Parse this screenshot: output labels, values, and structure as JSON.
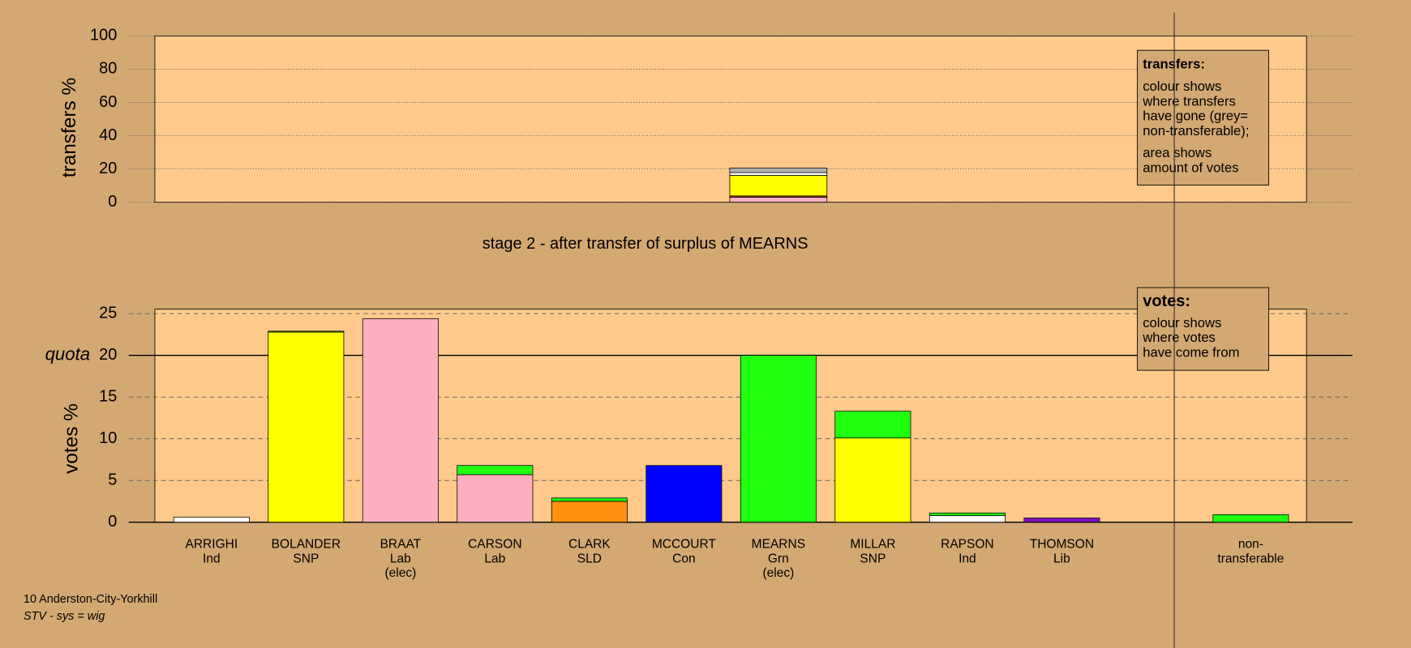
{
  "chart_data": [
    {
      "type": "bar",
      "ylabel": "transfers %",
      "ylim": [
        0,
        100
      ],
      "yticks": [
        0,
        20,
        40,
        60,
        80,
        100
      ],
      "grid": true,
      "series": [
        {
          "color": "#ffb0c0",
          "values": [
            null,
            null,
            null,
            null,
            null,
            null,
            3.0,
            null,
            null,
            null,
            null,
            null
          ]
        },
        {
          "color": "#c84000",
          "values": [
            null,
            null,
            null,
            null,
            null,
            null,
            0.8,
            null,
            null,
            null,
            null,
            null
          ]
        },
        {
          "color": "#ffff00",
          "values": [
            null,
            null,
            null,
            null,
            null,
            null,
            12.4,
            null,
            null,
            null,
            null,
            null
          ]
        },
        {
          "color": "#ffffff",
          "values": [
            null,
            null,
            null,
            null,
            null,
            null,
            1.6,
            null,
            null,
            null,
            null,
            null
          ]
        },
        {
          "color": "#b0b0b0",
          "values": [
            null,
            null,
            null,
            null,
            null,
            null,
            2.7,
            null,
            null,
            null,
            null,
            null
          ]
        }
      ],
      "note": {
        "heading": "transfers:",
        "paragraphs": [
          [
            "colour shows",
            "where transfers",
            "have gone (grey=",
            "non-transferable);"
          ],
          [
            "area shows",
            "amount of votes"
          ]
        ]
      }
    },
    {
      "type": "bar",
      "title": "stage 2 - after transfer of surplus of MEARNS",
      "ylabel": "votes %",
      "ylim": [
        0,
        25
      ],
      "yticks": [
        0,
        5,
        10,
        15,
        20,
        25
      ],
      "grid": true,
      "quota": {
        "value": 20,
        "label": "quota"
      },
      "categories": [
        [
          "ARRIGHI",
          "Ind"
        ],
        [
          "BOLANDER",
          "SNP"
        ],
        [
          "BRAAT",
          "Lab",
          "(elec)"
        ],
        [
          "CARSON",
          "Lab"
        ],
        [
          "CLARK",
          "SLD"
        ],
        [
          "MCCOURT",
          "Con"
        ],
        [
          "MEARNS",
          "Grn",
          "(elec)"
        ],
        [
          "MILLAR",
          "SNP"
        ],
        [
          "RAPSON",
          "Ind"
        ],
        [
          "THOMSON",
          "Lib"
        ],
        null,
        [
          "non-",
          "transferable"
        ]
      ],
      "series": [
        {
          "color": "#ffffff",
          "values": [
            0.6,
            null,
            null,
            null,
            null,
            null,
            null,
            null,
            0.8,
            null,
            null,
            null
          ]
        },
        {
          "color": "#ffff00",
          "values": [
            null,
            22.8,
            null,
            null,
            null,
            null,
            null,
            10.1,
            null,
            null,
            null,
            null
          ]
        },
        {
          "color": "#ffb0c0",
          "values": [
            null,
            null,
            24.4,
            5.7,
            null,
            null,
            null,
            null,
            null,
            null,
            null,
            null
          ]
        },
        {
          "color": "#ff9010",
          "values": [
            null,
            null,
            null,
            null,
            2.5,
            null,
            null,
            null,
            null,
            null,
            null,
            null
          ]
        },
        {
          "color": "#0000ff",
          "values": [
            null,
            null,
            null,
            null,
            null,
            6.8,
            null,
            null,
            null,
            null,
            null,
            null
          ]
        },
        {
          "color": "#8010c0",
          "values": [
            null,
            null,
            null,
            null,
            null,
            null,
            null,
            null,
            null,
            0.5,
            null,
            null
          ]
        },
        {
          "color": "#20ff10",
          "values": [
            null,
            0.1,
            null,
            1.1,
            0.4,
            null,
            20.0,
            3.2,
            0.3,
            null,
            null,
            0.9
          ]
        }
      ],
      "note": {
        "heading": "votes:",
        "paragraphs": [
          [
            "colour shows",
            "where votes",
            "have come from"
          ]
        ]
      }
    }
  ],
  "footer": {
    "district": "10 Anderston-City-Yorkhill",
    "system": "STV - sys = wig"
  }
}
